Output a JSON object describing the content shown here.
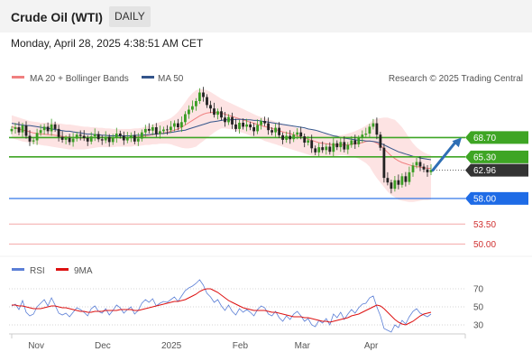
{
  "header": {
    "title": "Crude Oil (WTI)",
    "timeframe": "DAILY"
  },
  "datetime": "Monday, April 28, 2025 4:38:51 AM CET",
  "credit": "Research © 2025 Trading Central",
  "chart_data": [
    {
      "type": "line",
      "title": "Crude Oil (WTI)",
      "legend": [
        {
          "name": "MA 20 + Bollinger Bands",
          "color": "#f08080"
        },
        {
          "name": "MA 50",
          "color": "#34558b"
        }
      ],
      "legend_placement": "top-left",
      "x_ticks": [
        "Nov",
        "Dec",
        "2025",
        "Feb",
        "Mar",
        "Apr"
      ],
      "x_tick_dates": [
        "2024-11-01",
        "2024-12-01",
        "2025-01-01",
        "2025-02-01",
        "2025-03-01",
        "2025-04-01"
      ],
      "date_range": [
        "2024-10-21",
        "2025-04-28"
      ],
      "ylim": [
        48,
        77
      ],
      "close": [
        70.2,
        70.5,
        69.6,
        70.8,
        69.0,
        68.0,
        68.2,
        69.5,
        70.0,
        70.6,
        69.8,
        71.0,
        70.2,
        68.8,
        68.3,
        68.6,
        67.9,
        68.5,
        69.2,
        69.0,
        68.6,
        68.0,
        68.9,
        69.3,
        68.4,
        68.2,
        68.8,
        67.9,
        68.6,
        69.4,
        69.0,
        68.2,
        68.7,
        69.1,
        68.0,
        68.5,
        69.6,
        70.2,
        69.9,
        70.5,
        69.3,
        69.8,
        70.1,
        70.0,
        70.6,
        71.2,
        70.5,
        71.4,
        72.8,
        73.6,
        74.2,
        75.1,
        76.6,
        75.8,
        74.4,
        73.8,
        72.7,
        73.3,
        72.2,
        71.4,
        72.3,
        71.0,
        70.2,
        71.3,
        70.6,
        71.0,
        70.5,
        69.8,
        70.9,
        71.6,
        71.2,
        70.0,
        69.6,
        70.4,
        69.1,
        68.3,
        69.0,
        68.4,
        69.2,
        69.6,
        68.9,
        67.8,
        68.2,
        66.8,
        66.1,
        67.0,
        66.5,
        67.1,
        66.2,
        67.7,
        67.0,
        67.9,
        66.6,
        67.4,
        68.2,
        67.5,
        68.6,
        69.2,
        69.4,
        70.6,
        71.2,
        69.2,
        66.9,
        61.6,
        60.8,
        59.7,
        61.2,
        60.4,
        61.9,
        60.9,
        62.6,
        63.8,
        64.4,
        63.6,
        63.1,
        62.6,
        63.0
      ],
      "ma20": [
        70.6,
        70.4,
        70.2,
        70.0,
        69.9,
        69.7,
        69.5,
        69.4,
        69.3,
        69.3,
        69.2,
        69.2,
        69.1,
        69.0,
        68.9,
        68.8,
        68.8,
        68.7,
        68.7,
        68.6,
        68.6,
        68.6,
        68.7,
        68.7,
        68.7,
        68.7,
        68.6,
        68.6,
        68.6,
        68.7,
        68.7,
        68.7,
        68.7,
        68.7,
        68.8,
        68.8,
        68.9,
        69.0,
        69.1,
        69.2,
        69.3,
        69.4,
        69.5,
        69.6,
        69.8,
        70.0,
        70.2,
        70.5,
        70.9,
        71.3,
        71.7,
        72.1,
        72.5,
        72.8,
        73.0,
        73.1,
        73.1,
        73.1,
        73.0,
        72.8,
        72.6,
        72.4,
        72.2,
        72.0,
        71.8,
        71.6,
        71.4,
        71.2,
        71.0,
        70.8,
        70.6,
        70.5,
        70.3,
        70.1,
        69.9,
        69.7,
        69.5,
        69.4,
        69.2,
        69.0,
        68.8,
        68.6,
        68.4,
        68.2,
        68.0,
        67.8,
        67.7,
        67.6,
        67.5,
        67.4,
        67.4,
        67.4,
        67.4,
        67.4,
        67.5,
        67.6,
        67.7,
        67.8,
        68.0,
        68.1,
        68.0,
        67.7,
        67.3,
        66.7,
        66.1,
        65.5,
        65.0,
        64.6,
        64.3,
        64.1,
        63.9,
        63.7,
        63.6,
        63.5,
        63.4,
        63.3,
        63.3
      ],
      "bb_upper": [
        72.6,
        72.4,
        72.2,
        72.0,
        71.8,
        71.6,
        71.5,
        71.4,
        71.3,
        71.3,
        71.3,
        71.3,
        71.3,
        71.2,
        71.1,
        71.0,
        71.0,
        70.9,
        70.8,
        70.7,
        70.6,
        70.6,
        70.5,
        70.5,
        70.4,
        70.4,
        70.3,
        70.3,
        70.2,
        70.2,
        70.2,
        70.2,
        70.2,
        70.2,
        70.3,
        70.3,
        70.4,
        70.6,
        70.8,
        71.0,
        71.2,
        71.4,
        71.6,
        71.8,
        72.1,
        72.6,
        73.2,
        74.0,
        74.9,
        75.8,
        76.5,
        77.0,
        77.2,
        77.2,
        77.0,
        76.7,
        76.3,
        75.9,
        75.5,
        75.2,
        74.9,
        74.6,
        74.3,
        74.0,
        73.7,
        73.4,
        73.1,
        72.8,
        72.5,
        72.3,
        72.1,
        71.9,
        71.7,
        71.5,
        71.3,
        71.1,
        70.9,
        70.7,
        70.6,
        70.4,
        70.3,
        70.2,
        70.1,
        70.0,
        69.9,
        69.7,
        69.5,
        69.3,
        69.2,
        69.1,
        69.1,
        69.1,
        69.2,
        69.4,
        69.6,
        69.8,
        70.1,
        70.4,
        70.8,
        71.2,
        71.8,
        72.0,
        72.1,
        72.2,
        72.2,
        72.0,
        71.8,
        71.2,
        70.5,
        69.6,
        68.6,
        67.7,
        67.0,
        66.5,
        66.1,
        65.8,
        65.6
      ],
      "bb_lower": [
        68.6,
        68.4,
        68.2,
        68.0,
        67.9,
        67.8,
        67.6,
        67.5,
        67.4,
        67.3,
        67.2,
        67.1,
        67.0,
        66.9,
        66.8,
        66.7,
        66.6,
        66.6,
        66.6,
        66.6,
        66.6,
        66.7,
        66.8,
        66.9,
        67.0,
        67.0,
        67.0,
        67.0,
        67.0,
        67.1,
        67.1,
        67.1,
        67.1,
        67.1,
        67.2,
        67.2,
        67.3,
        67.4,
        67.4,
        67.5,
        67.5,
        67.6,
        67.6,
        67.6,
        67.5,
        67.3,
        67.1,
        66.9,
        66.8,
        66.8,
        66.9,
        67.1,
        67.6,
        68.1,
        68.6,
        69.1,
        69.6,
        70.0,
        70.3,
        70.3,
        70.2,
        70.1,
        69.9,
        69.7,
        69.5,
        69.3,
        69.0,
        68.8,
        68.6,
        68.4,
        68.1,
        67.9,
        67.7,
        67.5,
        67.3,
        67.1,
        66.9,
        66.7,
        66.5,
        66.3,
        66.1,
        65.9,
        65.7,
        65.5,
        65.4,
        65.3,
        65.3,
        65.3,
        65.3,
        65.4,
        65.5,
        65.6,
        65.6,
        65.5,
        65.4,
        65.2,
        65.0,
        64.6,
        64.2,
        63.6,
        62.5,
        61.6,
        60.8,
        60.0,
        59.2,
        58.6,
        58.2,
        57.8,
        57.6,
        57.5,
        57.4,
        57.4,
        57.5,
        57.6,
        57.7,
        57.7,
        57.8
      ],
      "ma50": [
        71.2,
        71.1,
        71.0,
        70.9,
        70.8,
        70.8,
        70.7,
        70.6,
        70.5,
        70.4,
        70.3,
        70.2,
        70.1,
        70.0,
        69.9,
        69.8,
        69.8,
        69.7,
        69.6,
        69.5,
        69.4,
        69.3,
        69.3,
        69.2,
        69.2,
        69.1,
        69.1,
        69.0,
        69.0,
        69.0,
        69.0,
        69.0,
        69.0,
        69.0,
        69.1,
        69.1,
        69.1,
        69.2,
        69.2,
        69.3,
        69.3,
        69.4,
        69.4,
        69.5,
        69.6,
        69.7,
        69.8,
        69.9,
        70.0,
        70.2,
        70.4,
        70.6,
        70.8,
        71.0,
        71.2,
        71.4,
        71.5,
        71.6,
        71.7,
        71.8,
        71.8,
        71.8,
        71.9,
        71.9,
        71.9,
        71.8,
        71.8,
        71.7,
        71.7,
        71.6,
        71.5,
        71.4,
        71.3,
        71.2,
        71.1,
        71.0,
        70.9,
        70.8,
        70.7,
        70.6,
        70.5,
        70.4,
        70.2,
        70.1,
        70.0,
        69.8,
        69.6,
        69.4,
        69.2,
        69.0,
        68.9,
        68.7,
        68.6,
        68.5,
        68.4,
        68.3,
        68.2,
        68.2,
        68.1,
        68.1,
        68.0,
        67.9,
        67.7,
        67.4,
        67.1,
        66.8,
        66.5,
        66.2,
        66.0,
        65.8,
        65.6,
        65.4,
        65.3,
        65.1,
        65.0,
        64.9,
        64.8
      ],
      "levels": [
        {
          "value": 68.7,
          "label": "68.70",
          "kind": "resistance",
          "color": "#3ea524",
          "line": "solid"
        },
        {
          "value": 65.3,
          "label": "65.30",
          "kind": "pivot",
          "color": "#3ea524",
          "line": "solid"
        },
        {
          "value": 62.96,
          "label": "62.96",
          "kind": "last price",
          "color": "#333333",
          "line": "dotted"
        },
        {
          "value": 58.0,
          "label": "58.00",
          "kind": "support",
          "color": "#1e6be6",
          "line": "solid"
        },
        {
          "value": 53.5,
          "label": "53.50",
          "kind": "support",
          "color": "#e05050",
          "line": "thin"
        },
        {
          "value": 50.0,
          "label": "50.00",
          "kind": "support",
          "color": "#e05050",
          "line": "thin"
        }
      ],
      "projection": {
        "direction": "up",
        "from": 62.96,
        "to": 68.7,
        "color": "#2f6fb5"
      },
      "grid": false
    },
    {
      "type": "line",
      "title": "RSI",
      "legend": [
        {
          "name": "RSI",
          "color": "#5b7fd6"
        },
        {
          "name": "9MA",
          "color": "#dd1111"
        }
      ],
      "legend_placement": "top-left",
      "ylim": [
        20,
        80
      ],
      "y_ticks": [
        30,
        50,
        70
      ],
      "rsi": [
        51,
        53,
        47,
        57,
        44,
        40,
        42,
        50,
        54,
        58,
        51,
        60,
        52,
        43,
        41,
        43,
        39,
        44,
        49,
        47,
        44,
        40,
        48,
        51,
        45,
        43,
        48,
        41,
        46,
        52,
        49,
        43,
        47,
        50,
        42,
        46,
        54,
        58,
        55,
        59,
        51,
        54,
        56,
        55,
        58,
        61,
        56,
        62,
        68,
        71,
        73,
        76,
        80,
        74,
        65,
        61,
        55,
        58,
        51,
        46,
        52,
        45,
        41,
        48,
        44,
        47,
        44,
        40,
        47,
        51,
        49,
        42,
        40,
        45,
        38,
        34,
        40,
        36,
        42,
        45,
        40,
        34,
        37,
        30,
        28,
        35,
        32,
        37,
        30,
        42,
        38,
        44,
        36,
        42,
        47,
        43,
        49,
        53,
        54,
        60,
        62,
        50,
        40,
        26,
        24,
        22,
        30,
        27,
        35,
        31,
        39,
        45,
        48,
        43,
        41,
        39,
        42
      ],
      "rsi_ma9": [
        52,
        52,
        51,
        51,
        50,
        49,
        48,
        48,
        48,
        49,
        50,
        51,
        51,
        50,
        49,
        49,
        48,
        47,
        46,
        45,
        45,
        44,
        44,
        45,
        45,
        45,
        46,
        46,
        46,
        46,
        47,
        47,
        47,
        47,
        46,
        46,
        47,
        48,
        49,
        50,
        51,
        52,
        53,
        54,
        55,
        56,
        56,
        57,
        58,
        60,
        62,
        64,
        67,
        69,
        70,
        70,
        68,
        66,
        63,
        60,
        57,
        55,
        53,
        51,
        49,
        48,
        47,
        46,
        46,
        46,
        46,
        45,
        44,
        44,
        43,
        42,
        41,
        40,
        39,
        39,
        39,
        38,
        38,
        37,
        36,
        35,
        34,
        34,
        33,
        34,
        35,
        36,
        37,
        38,
        40,
        41,
        42,
        44,
        46,
        48,
        50,
        52,
        51,
        48,
        44,
        40,
        36,
        33,
        31,
        30,
        32,
        34,
        37,
        40,
        42,
        43,
        44
      ]
    }
  ]
}
